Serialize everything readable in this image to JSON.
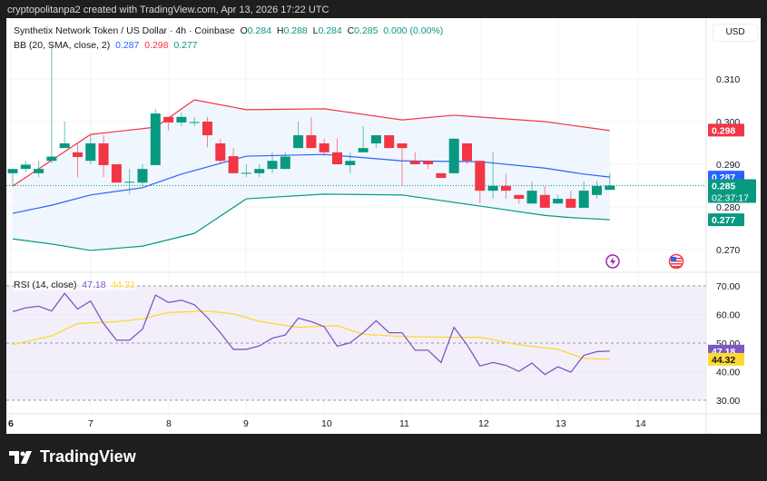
{
  "header": {
    "credit": "cryptopolitanpa2 created with TradingView.com, Apr 13, 2026 17:22 UTC"
  },
  "symbol": {
    "title": "Synthetix Network Token / US Dollar · 4h · Coinbase",
    "o_label": "O",
    "o": "0.284",
    "h_label": "H",
    "h": "0.288",
    "l_label": "L",
    "l": "0.284",
    "c_label": "C",
    "c": "0.285",
    "change": "0.000 (0.00%)"
  },
  "bb_legend": {
    "label": "BB (20, SMA, close, 2)",
    "basis": "0.287",
    "upper": "0.298",
    "lower": "0.277"
  },
  "rsi_legend": {
    "label": "RSI (14, close)",
    "rsi": "47.18",
    "ma": "44.32"
  },
  "currency": "USD",
  "colors": {
    "up": "#089981",
    "down": "#f23645",
    "basis": "#2962ff",
    "upper": "#f23645",
    "lower": "#089981",
    "rsi": "#7e57c2",
    "rsi_ma": "#fdd835",
    "band_fill": "#f0f6fd",
    "rsi_fill": "#f3effa"
  },
  "price_axis": {
    "ticks": [
      "0.310",
      "0.300",
      "0.290",
      "0.280",
      "0.270"
    ],
    "tick_values": [
      0.31,
      0.3,
      0.29,
      0.28,
      0.27
    ],
    "tags": [
      {
        "value": "0.298",
        "color": "#f23645"
      },
      {
        "value": "0.287",
        "color": "#2962ff"
      },
      {
        "value": "0.285",
        "sub": "02:37:17",
        "color": "#089981"
      },
      {
        "value": "0.277",
        "color": "#089981"
      }
    ]
  },
  "rsi_axis": {
    "ticks": [
      "70.00",
      "60.00",
      "50.00",
      "40.00",
      "30.00"
    ],
    "tick_values": [
      70,
      60,
      50,
      40,
      30
    ],
    "tags": [
      {
        "value": "47.18",
        "color": "#7e57c2",
        "text": "#fff"
      },
      {
        "value": "44.32",
        "color": "#fdd835",
        "text": "#131722"
      }
    ]
  },
  "time_axis": [
    "6",
    "7",
    "8",
    "9",
    "10",
    "11",
    "12",
    "13",
    "14"
  ],
  "icons": [
    "lightning-icon",
    "us-flag-icon",
    "tradingview-logo-icon"
  ],
  "footer": {
    "brand": "TradingView"
  },
  "chart_data": {
    "type": "candlestick",
    "timeframe": "4h",
    "ylim": [
      0.265,
      0.322
    ],
    "last_price": 0.285,
    "ohlc": [
      [
        0.2879,
        0.2889,
        0.2849,
        0.2889
      ],
      [
        0.2889,
        0.2908,
        0.2881,
        0.2899
      ],
      [
        0.2879,
        0.2908,
        0.287,
        0.2889
      ],
      [
        0.2908,
        0.318,
        0.2902,
        0.2918
      ],
      [
        0.2938,
        0.3,
        0.2938,
        0.2949
      ],
      [
        0.2928,
        0.2949,
        0.287,
        0.2917
      ],
      [
        0.2908,
        0.2968,
        0.29,
        0.2949
      ],
      [
        0.2949,
        0.2968,
        0.287,
        0.2898
      ],
      [
        0.29,
        0.29,
        0.2857,
        0.2857
      ],
      [
        0.2858,
        0.2889,
        0.283,
        0.2859
      ],
      [
        0.2857,
        0.29,
        0.2849,
        0.2889
      ],
      [
        0.2898,
        0.303,
        0.2898,
        0.3019
      ],
      [
        0.3011,
        0.3011,
        0.2979,
        0.2998
      ],
      [
        0.2998,
        0.3021,
        0.2989,
        0.3011
      ],
      [
        0.2998,
        0.3011,
        0.2989,
        0.2999
      ],
      [
        0.3,
        0.3011,
        0.294,
        0.2968
      ],
      [
        0.2949,
        0.296,
        0.29,
        0.2908
      ],
      [
        0.2919,
        0.2938,
        0.2879,
        0.2879
      ],
      [
        0.2879,
        0.29,
        0.287,
        0.288
      ],
      [
        0.2879,
        0.29,
        0.287,
        0.2889
      ],
      [
        0.2889,
        0.2928,
        0.2879,
        0.2908
      ],
      [
        0.2889,
        0.2928,
        0.2889,
        0.2918
      ],
      [
        0.2938,
        0.3,
        0.2938,
        0.2968
      ],
      [
        0.2968,
        0.3011,
        0.2938,
        0.2938
      ],
      [
        0.2949,
        0.296,
        0.2919,
        0.2928
      ],
      [
        0.2928,
        0.296,
        0.29,
        0.29
      ],
      [
        0.2898,
        0.2928,
        0.2879,
        0.2908
      ],
      [
        0.2928,
        0.2989,
        0.2928,
        0.2938
      ],
      [
        0.2949,
        0.2968,
        0.2938,
        0.2968
      ],
      [
        0.2968,
        0.2968,
        0.2938,
        0.2938
      ],
      [
        0.2949,
        0.2949,
        0.2849,
        0.2938
      ],
      [
        0.2908,
        0.2928,
        0.29,
        0.29
      ],
      [
        0.2908,
        0.2908,
        0.2889,
        0.29
      ],
      [
        0.2879,
        0.2879,
        0.2868,
        0.2868
      ],
      [
        0.2879,
        0.296,
        0.2879,
        0.296
      ],
      [
        0.2949,
        0.2949,
        0.29,
        0.2908
      ],
      [
        0.2908,
        0.2908,
        0.2808,
        0.2838
      ],
      [
        0.2838,
        0.2928,
        0.2819,
        0.2849
      ],
      [
        0.2849,
        0.2879,
        0.2819,
        0.2838
      ],
      [
        0.2828,
        0.2828,
        0.2808,
        0.2819
      ],
      [
        0.2808,
        0.286,
        0.2808,
        0.2838
      ],
      [
        0.2828,
        0.2849,
        0.2798,
        0.2798
      ],
      [
        0.2808,
        0.2828,
        0.2808,
        0.2819
      ],
      [
        0.2819,
        0.2838,
        0.2798,
        0.2798
      ],
      [
        0.2798,
        0.286,
        0.2798,
        0.2838
      ],
      [
        0.2828,
        0.286,
        0.2819,
        0.2849
      ],
      [
        0.284,
        0.288,
        0.284,
        0.285
      ]
    ],
    "bb_upper": [
      [
        0,
        0.2849
      ],
      [
        6,
        0.297
      ],
      [
        11,
        0.2987
      ],
      [
        14,
        0.3051
      ],
      [
        18,
        0.3028
      ],
      [
        24,
        0.303
      ],
      [
        30,
        0.3004
      ],
      [
        34,
        0.3015
      ],
      [
        41,
        0.3
      ],
      [
        46,
        0.2979
      ]
    ],
    "bb_basis": [
      [
        0,
        0.2785
      ],
      [
        3,
        0.2804
      ],
      [
        6,
        0.2828
      ],
      [
        10,
        0.2845
      ],
      [
        13,
        0.2877
      ],
      [
        18,
        0.2919
      ],
      [
        24,
        0.2923
      ],
      [
        30,
        0.2908
      ],
      [
        36,
        0.2906
      ],
      [
        41,
        0.2891
      ],
      [
        44,
        0.2877
      ],
      [
        46,
        0.287
      ]
    ],
    "bb_lower": [
      [
        0,
        0.2725
      ],
      [
        3,
        0.2713
      ],
      [
        6,
        0.2698
      ],
      [
        10,
        0.2708
      ],
      [
        14,
        0.2738
      ],
      [
        18,
        0.2819
      ],
      [
        24,
        0.283
      ],
      [
        30,
        0.2828
      ],
      [
        36,
        0.2802
      ],
      [
        41,
        0.278
      ],
      [
        43,
        0.2775
      ],
      [
        46,
        0.277
      ]
    ],
    "rsi": [
      61.0,
      62.3,
      62.9,
      61.2,
      67.4,
      61.9,
      64.7,
      56.8,
      51.0,
      51.0,
      54.9,
      66.8,
      64.2,
      65.0,
      63.4,
      58.9,
      53.6,
      47.8,
      47.8,
      49.0,
      51.7,
      52.8,
      58.7,
      57.5,
      55.7,
      48.9,
      50.1,
      53.6,
      57.8,
      53.6,
      53.6,
      47.5,
      47.5,
      43.2,
      55.5,
      49.4,
      42.0,
      43.2,
      42.2,
      40.1,
      43.0,
      39.0,
      41.7,
      39.8,
      45.7,
      47.0,
      47.18
    ],
    "rsi_ma": [
      [
        0,
        49.4
      ],
      [
        3,
        52.5
      ],
      [
        5,
        56.8
      ],
      [
        8,
        57.5
      ],
      [
        10,
        58.4
      ],
      [
        12,
        60.7
      ],
      [
        15,
        61.2
      ],
      [
        17,
        60.2
      ],
      [
        19,
        57.6
      ],
      [
        22,
        55.5
      ],
      [
        25,
        56.1
      ],
      [
        27,
        53.1
      ],
      [
        30,
        52.3
      ],
      [
        34,
        52.0
      ],
      [
        36,
        52.0
      ],
      [
        39,
        49.4
      ],
      [
        42,
        47.8
      ],
      [
        44,
        44.6
      ],
      [
        46,
        44.32
      ]
    ],
    "rsi_ylim": [
      30,
      70
    ],
    "rsi_bands": [
      70,
      50,
      30
    ]
  }
}
